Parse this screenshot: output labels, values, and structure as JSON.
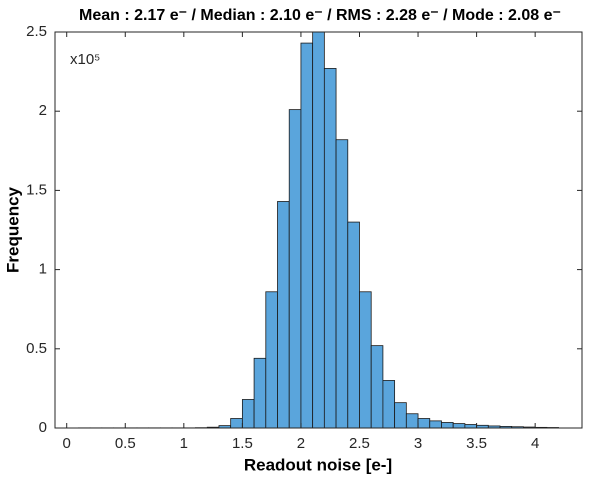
{
  "chart_data": {
    "type": "histogram",
    "title": "Mean : 2.17 e⁻ / Median : 2.10 e⁻ / RMS : 2.28 e⁻ / Mode : 2.08 e⁻",
    "x_label": "Readout noise [e-]",
    "y_label": "Frequency",
    "y_multiplier": "x10⁵",
    "bins": [
      0.1,
      0.2,
      0.3,
      0.4,
      0.5,
      0.6,
      0.7,
      0.8,
      0.9,
      1.0,
      1.1,
      1.2,
      1.3,
      1.4,
      1.5,
      1.6,
      1.7,
      1.8,
      1.9,
      2.0,
      2.1,
      2.2,
      2.3,
      2.4,
      2.5,
      2.6,
      2.7,
      2.8,
      2.9,
      3.0,
      3.1,
      3.2,
      3.3,
      3.4,
      3.5,
      3.6,
      3.7,
      3.8,
      3.9,
      4.0,
      4.1,
      4.2
    ],
    "values": [
      0.001,
      0.001,
      0.001,
      0.001,
      0.001,
      0.001,
      0.001,
      0.001,
      0.001,
      0.001,
      0.002,
      0.005,
      0.015,
      0.06,
      0.18,
      0.44,
      0.86,
      1.43,
      2.01,
      2.43,
      2.5,
      2.27,
      1.82,
      1.3,
      0.86,
      0.52,
      0.3,
      0.16,
      0.09,
      0.06,
      0.045,
      0.035,
      0.028,
      0.022,
      0.017,
      0.013,
      0.01,
      0.008,
      0.006,
      0.004,
      0.003
    ],
    "color": "#5aa5dc",
    "edge_color": "#1a1a1a",
    "xlim": [
      -0.1,
      4.4
    ],
    "xticks": [
      0,
      0.5,
      1,
      1.5,
      2,
      2.5,
      3,
      3.5,
      4
    ],
    "ylim": [
      0,
      2.5
    ],
    "yticks": [
      0,
      0.5,
      1,
      1.5,
      2,
      2.5
    ],
    "grid": false
  }
}
